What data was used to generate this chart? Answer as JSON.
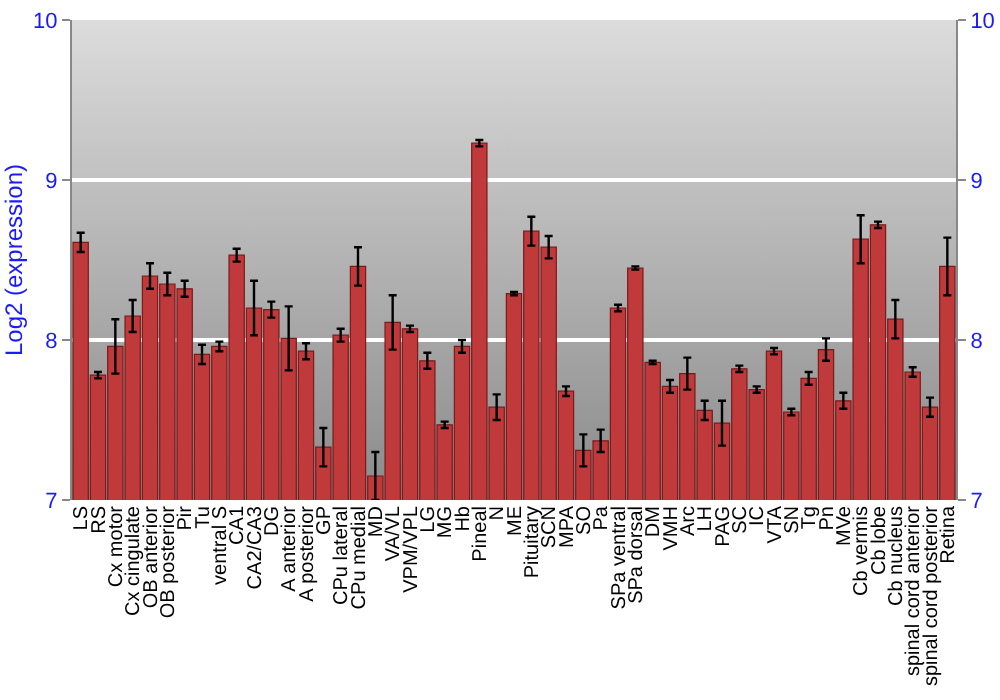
{
  "chart_data": {
    "type": "bar",
    "ylabel": "Log2 (expression)",
    "categories": [
      "LS",
      "RS",
      "Cx motor",
      "Cx cingulate",
      "OB anterior",
      "OB posterior",
      "Pir",
      "Tu",
      "ventral S",
      "CA1",
      "CA2/CA3",
      "DG",
      "A anterior",
      "A posterior",
      "GP",
      "CPu lateral",
      "CPu medial",
      "MD",
      "VA/VL",
      "VPM/VPL",
      "LG",
      "MG",
      "Hb",
      "Pineal",
      "N",
      "ME",
      "Pituitary",
      "SCN",
      "MPA",
      "SO",
      "Pa",
      "SPa ventral",
      "SPa dorsal",
      "DM",
      "VMH",
      "Arc",
      "LH",
      "PAG",
      "SC",
      "IC",
      "VTA",
      "SN",
      "Tg",
      "Pn",
      "MVe",
      "Cb vermis",
      "Cb lobe",
      "Cb nucleus",
      "spinal cord anterior",
      "spinal cord posterior",
      "Retina"
    ],
    "series": [
      {
        "color": "#c0393b",
        "values": [
          8.61,
          7.78,
          7.96,
          8.15,
          8.4,
          8.35,
          8.32,
          7.91,
          7.96,
          8.53,
          8.2,
          8.19,
          8.01,
          7.93,
          7.33,
          8.03,
          8.46,
          7.15,
          8.11,
          8.07,
          7.87,
          7.47,
          7.96,
          9.23,
          7.58,
          8.29,
          8.68,
          8.58,
          7.68,
          7.31,
          7.37,
          8.2,
          8.45,
          7.86,
          7.71,
          7.79,
          7.56,
          7.48,
          7.82,
          7.69,
          7.93,
          7.55,
          7.76,
          7.94,
          7.62,
          8.63,
          8.72,
          8.13,
          7.8,
          7.58,
          8.46
        ],
        "errors": [
          0.06,
          0.02,
          0.17,
          0.1,
          0.08,
          0.07,
          0.05,
          0.06,
          0.03,
          0.04,
          0.17,
          0.05,
          0.2,
          0.05,
          0.12,
          0.04,
          0.12,
          0.15,
          0.17,
          0.02,
          0.05,
          0.02,
          0.04,
          0.02,
          0.08,
          0.01,
          0.09,
          0.07,
          0.03,
          0.1,
          0.07,
          0.02,
          0.01,
          0.01,
          0.04,
          0.1,
          0.06,
          0.14,
          0.02,
          0.02,
          0.02,
          0.02,
          0.04,
          0.07,
          0.05,
          0.15,
          0.02,
          0.12,
          0.03,
          0.06,
          0.18
        ]
      }
    ],
    "ylim": [
      7,
      10
    ],
    "yticks": [
      7,
      8,
      9,
      10
    ],
    "y2lim": [
      7,
      10
    ],
    "y2ticks": [
      7,
      8,
      9,
      10
    ],
    "grid": "y"
  }
}
